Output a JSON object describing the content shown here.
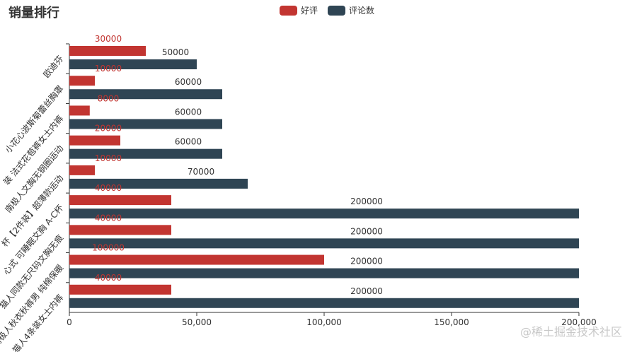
{
  "header": {
    "title": "销量排行"
  },
  "watermark": "@稀土掘金技术社区",
  "chart_data": {
    "type": "bar",
    "orientation": "horizontal",
    "categories": [
      "欧迪芬",
      "小花心波斯菊蕾丝胸罩",
      "装 法式花苞裤女士内裤",
      "南极人文胸无钢圈运动",
      "杯【2件装】超薄款运动",
      "心式 可睡眠文胸 A-C杯",
      "猫人同款无尺码文胸无痕",
      "南极人秋衣秋裤男 纯棉保暖",
      "猫人4条装女士内裤"
    ],
    "series": [
      {
        "name": "好评",
        "color": "#c23531",
        "values": [
          30000,
          10000,
          8000,
          20000,
          10000,
          40000,
          40000,
          100000,
          40000
        ]
      },
      {
        "name": "评论数",
        "color": "#2f4554",
        "values": [
          50000,
          60000,
          60000,
          60000,
          70000,
          200000,
          200000,
          200000,
          200000
        ]
      }
    ],
    "xlim": [
      0,
      200000
    ],
    "xticks": [
      "0",
      "50,000",
      "100,000",
      "150,000",
      "200,000"
    ],
    "legend_position": "top-center",
    "grid": false
  }
}
